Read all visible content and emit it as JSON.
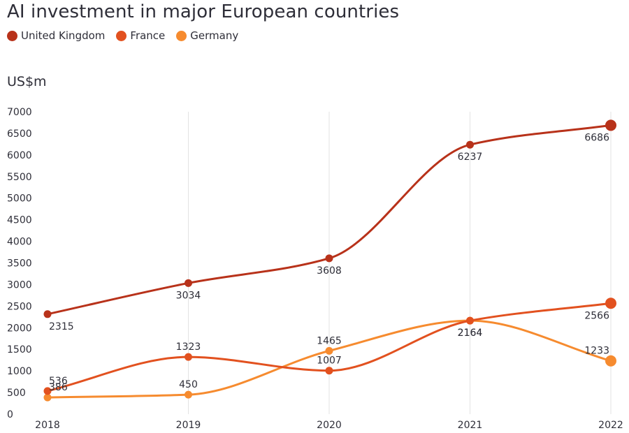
{
  "chart_data": {
    "type": "line",
    "title": "AI investment in major European countries",
    "ylabel": "US$m",
    "xlabel": "",
    "categories": [
      "2018",
      "2019",
      "2020",
      "2021",
      "2022"
    ],
    "ylim": [
      0,
      7000
    ],
    "yticks": [
      0,
      500,
      1000,
      1500,
      2000,
      2500,
      3000,
      3500,
      4000,
      4500,
      5000,
      5500,
      6000,
      6500,
      7000
    ],
    "legend_position": "top-left",
    "grid": "vertical",
    "series": [
      {
        "name": "United Kingdom",
        "color": "#b8321a",
        "values": [
          2315,
          3034,
          3608,
          6237,
          6686
        ],
        "label_side": [
          "below",
          "below",
          "below",
          "below",
          "below"
        ]
      },
      {
        "name": "France",
        "color": "#e2511f",
        "values": [
          536,
          1323,
          1007,
          2164,
          2566
        ],
        "label_side": [
          "above",
          "above",
          "above",
          "below",
          "below"
        ]
      },
      {
        "name": "Germany",
        "color": "#f68b2f",
        "values": [
          386,
          450,
          1465,
          2164,
          1233
        ],
        "label_side": [
          "above",
          "above",
          "above",
          "below",
          "above"
        ]
      }
    ]
  }
}
